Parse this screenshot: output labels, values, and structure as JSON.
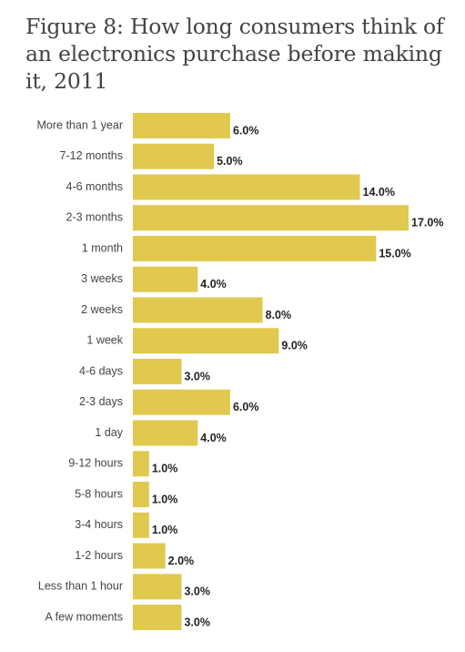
{
  "chart_data": {
    "type": "bar",
    "orientation": "horizontal",
    "title": "Figure 8: How long consumers think of an electronics purchase before making it, 2011",
    "categories": [
      "More than 1 year",
      "7-12 months",
      "4-6 months",
      "2-3 months",
      "1 month",
      "3 weeks",
      "2 weeks",
      "1 week",
      "4-6 days",
      "2-3 days",
      "1 day",
      "9-12 hours",
      "5-8 hours",
      "3-4 hours",
      "1-2 hours",
      "Less than 1 hour",
      "A few moments"
    ],
    "values": [
      6.0,
      5.0,
      14.0,
      17.0,
      15.0,
      4.0,
      8.0,
      9.0,
      3.0,
      6.0,
      4.0,
      1.0,
      1.0,
      1.0,
      2.0,
      3.0,
      3.0
    ],
    "value_labels": [
      "6.0%",
      "5.0%",
      "14.0%",
      "17.0%",
      "15.0%",
      "4.0%",
      "8.0%",
      "9.0%",
      "3.0%",
      "6.0%",
      "4.0%",
      "1.0%",
      "1.0%",
      "1.0%",
      "2.0%",
      "3.0%",
      "3.0%"
    ],
    "xlim": [
      0,
      17
    ],
    "grid": false,
    "bar_color": "#e0c94e"
  }
}
